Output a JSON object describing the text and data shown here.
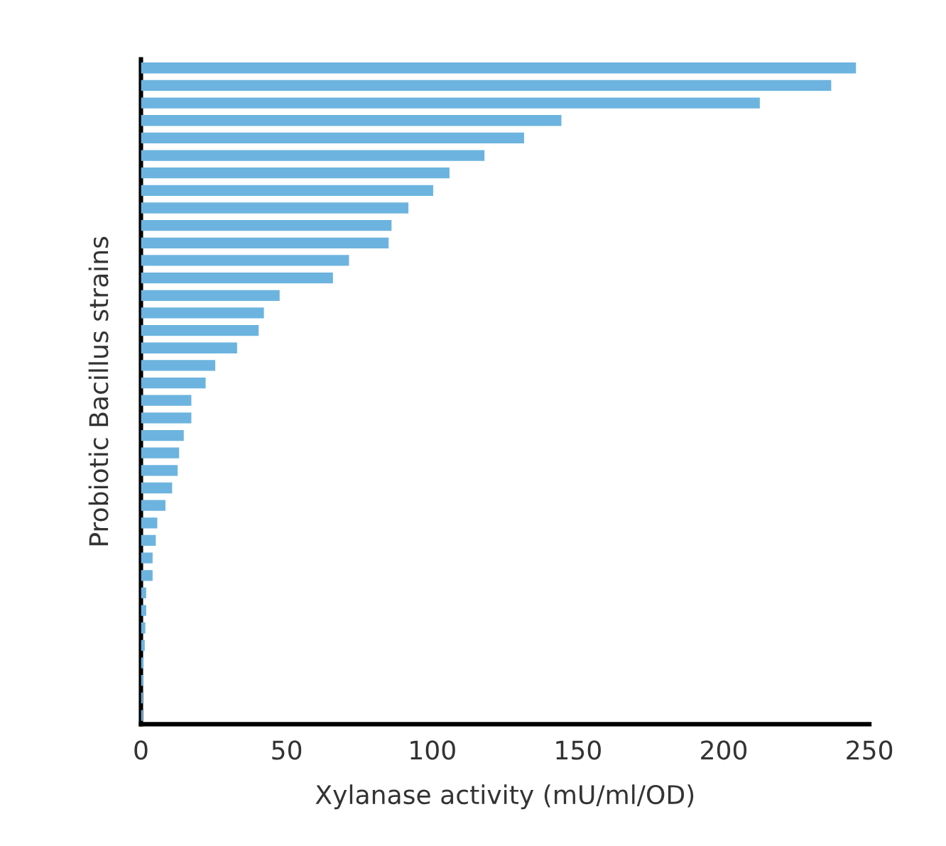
{
  "chart_data": {
    "type": "bar",
    "orientation": "horizontal",
    "xlabel": "Xylanase activity (mU/ml/OD)",
    "ylabel": "Probiotic Bacillus strains",
    "categories": [
      null,
      null,
      null,
      null,
      null,
      null,
      null,
      null,
      null,
      null,
      null,
      null,
      null,
      null,
      null,
      null,
      null,
      null,
      null,
      null,
      null,
      null,
      null,
      null,
      null,
      null,
      null,
      null,
      null,
      null,
      null,
      null,
      null,
      null,
      null,
      null,
      null,
      null
    ],
    "values": [
      245.4,
      236.9,
      212.4,
      144.3,
      131.5,
      117.9,
      105.9,
      100.3,
      91.8,
      86.0,
      85.0,
      71.4,
      65.9,
      47.6,
      42.2,
      40.4,
      33.0,
      25.5,
      22.2,
      17.3,
      17.3,
      14.7,
      13.1,
      12.6,
      10.7,
      8.4,
      5.6,
      5.1,
      4.0,
      4.0,
      1.8,
      1.8,
      1.5,
      1.3,
      0.9,
      0.8,
      0.6,
      0.6
    ],
    "color": "#6cb4df",
    "xlim": [
      0,
      250
    ],
    "xticks": [
      0,
      50,
      100,
      150,
      200,
      250
    ],
    "grid": false,
    "tick_labels": "x"
  }
}
